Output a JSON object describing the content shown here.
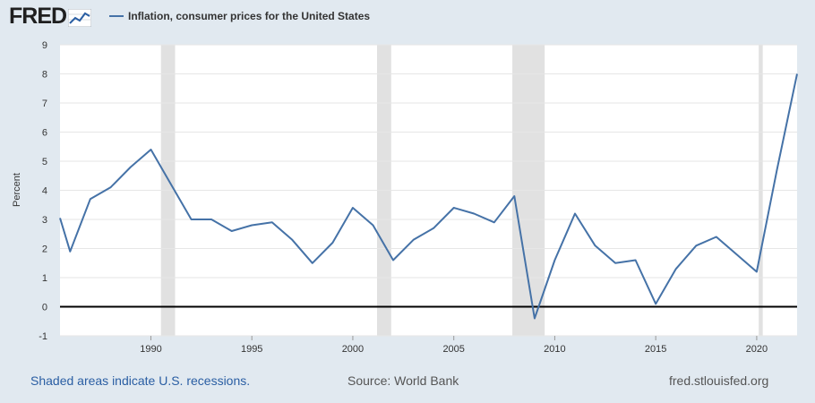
{
  "header": {
    "logo_text": "FRED",
    "logo_icon": "line-graph-icon"
  },
  "chart_data": {
    "type": "line",
    "legend_position": "top-left",
    "grid": true,
    "ylabel": "Percent",
    "ylim": [
      -1,
      9
    ],
    "yticks": [
      -1,
      0,
      1,
      2,
      3,
      4,
      5,
      6,
      7,
      8,
      9
    ],
    "xlim": [
      1985.5,
      2022
    ],
    "xticks": [
      1990,
      1995,
      2000,
      2005,
      2010,
      2015,
      2020
    ],
    "series": [
      {
        "name": "Inflation, consumer prices for the United States",
        "color": "#4572a7",
        "x": [
          1985.5,
          1986,
          1987,
          1988,
          1989,
          1990,
          1991,
          1992,
          1993,
          1994,
          1995,
          1996,
          1997,
          1998,
          1999,
          2000,
          2001,
          2002,
          2003,
          2004,
          2005,
          2006,
          2007,
          2008,
          2009,
          2010,
          2011,
          2012,
          2013,
          2014,
          2015,
          2016,
          2017,
          2018,
          2019,
          2020,
          2021,
          2022
        ],
        "y": [
          3.05,
          1.9,
          3.7,
          4.1,
          4.8,
          5.4,
          4.2,
          3.0,
          3.0,
          2.6,
          2.8,
          2.9,
          2.3,
          1.5,
          2.2,
          3.4,
          2.8,
          1.6,
          2.3,
          2.7,
          3.4,
          3.2,
          2.9,
          3.8,
          -0.4,
          1.6,
          3.2,
          2.1,
          1.5,
          1.6,
          0.1,
          1.3,
          2.1,
          2.4,
          1.8,
          1.2,
          4.7,
          8.0
        ]
      }
    ],
    "recessions": [
      {
        "start": 1990.5,
        "end": 1991.2
      },
      {
        "start": 2001.2,
        "end": 2001.9
      },
      {
        "start": 2007.9,
        "end": 2009.5
      },
      {
        "start": 2020.1,
        "end": 2020.3
      }
    ],
    "zero_line": true
  },
  "footer": {
    "note": "Shaded areas indicate U.S. recessions.",
    "source": "Source: World Bank",
    "url": "fred.stlouisfed.org"
  },
  "colors": {
    "background": "#e1e9f0",
    "plot_background": "#ffffff",
    "series": "#4572a7",
    "recession": "#e1e1e1",
    "link": "#2a5ea3"
  }
}
